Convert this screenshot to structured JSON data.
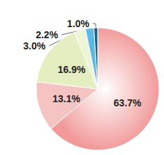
{
  "chart_data": {
    "type": "pie",
    "values": [
      63.7,
      13.1,
      16.9,
      3.0,
      2.2,
      1.0
    ],
    "value_labels": [
      "63.7%",
      "13.1%",
      "16.9%",
      "3.0%",
      "2.2%",
      "1.0%"
    ],
    "colors": [
      "#f29a9a",
      "#f6c3c3",
      "#e4eec0",
      "#eef4d6",
      "#5cb8e4",
      "#1b5f86"
    ],
    "data_labels": true
  }
}
